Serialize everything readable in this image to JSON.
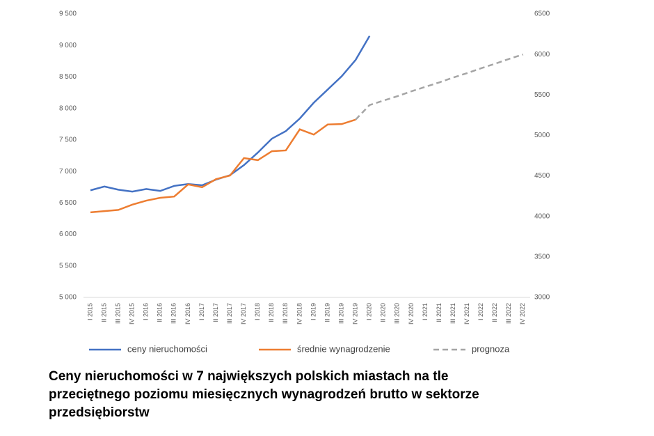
{
  "chart_data": {
    "type": "line",
    "title": [
      "Ceny nieruchomości w 7 największych polskich miastach na tle",
      "przeciętnego poziomu miesięcznych wynagrodzeń brutto w sektorze",
      "przedsiębiorstw"
    ],
    "categories": [
      "I 2015",
      "II 2015",
      "III 2015",
      "IV 2015",
      "I 2016",
      "II 2016",
      "III 2016",
      "IV 2016",
      "I 2017",
      "II 2017",
      "III 2017",
      "IV 2017",
      "I 2018",
      "II 2018",
      "III 2018",
      "IV 2018",
      "I 2019",
      "II 2019",
      "III 2019",
      "IV 2019",
      "I 2020",
      "II 2020",
      "III 2020",
      "IV 2020",
      "I 2021",
      "II 2021",
      "III 2021",
      "IV 2021",
      "I 2022",
      "II 2022",
      "III 2022",
      "IV 2022"
    ],
    "series": [
      {
        "name": "ceny nieruchomości",
        "color": "#4472c4",
        "axis": "y",
        "values": [
          6700,
          6760,
          6710,
          6680,
          6720,
          6690,
          6770,
          6800,
          6780,
          6870,
          6940,
          7100,
          7300,
          7520,
          7640,
          7840,
          8090,
          8300,
          8510,
          8770,
          9150,
          null,
          null,
          null,
          null,
          null,
          null,
          null,
          null,
          null,
          null,
          null
        ]
      },
      {
        "name": "średnie wynagrodzenie",
        "color": "#ed7d31",
        "axis": "y2",
        "values": [
          4050,
          4065,
          4080,
          4145,
          4195,
          4230,
          4245,
          4395,
          4360,
          4460,
          4505,
          4720,
          4695,
          4805,
          4815,
          5075,
          5010,
          5135,
          5140,
          5195,
          null,
          null,
          null,
          null,
          null,
          null,
          null,
          null,
          null,
          null,
          null,
          null
        ]
      },
      {
        "name": "prognoza",
        "color": "#a5a5a5",
        "axis": "y2",
        "dashed": true,
        "values": [
          null,
          null,
          null,
          null,
          null,
          null,
          null,
          null,
          null,
          null,
          null,
          null,
          null,
          null,
          null,
          null,
          null,
          null,
          null,
          5195,
          5375,
          5430,
          5485,
          5545,
          5600,
          5655,
          5715,
          5770,
          5830,
          5885,
          5945,
          6000
        ]
      }
    ],
    "ylim": [
      5000,
      9500
    ],
    "yticks": [
      {
        "value": 5000,
        "label": "5 000"
      },
      {
        "value": 5500,
        "label": "5 500"
      },
      {
        "value": 6000,
        "label": "6 000"
      },
      {
        "value": 6500,
        "label": "6 500"
      },
      {
        "value": 7000,
        "label": "7 000"
      },
      {
        "value": 7500,
        "label": "7 500"
      },
      {
        "value": 8000,
        "label": "8 000"
      },
      {
        "value": 8500,
        "label": "8 500"
      },
      {
        "value": 9000,
        "label": "9 000"
      },
      {
        "value": 9500,
        "label": "9 500"
      }
    ],
    "y2lim": [
      3000,
      6500
    ],
    "y2ticks": [
      3000,
      3500,
      4000,
      4500,
      5000,
      5500,
      6000,
      6500
    ],
    "grid": false
  }
}
